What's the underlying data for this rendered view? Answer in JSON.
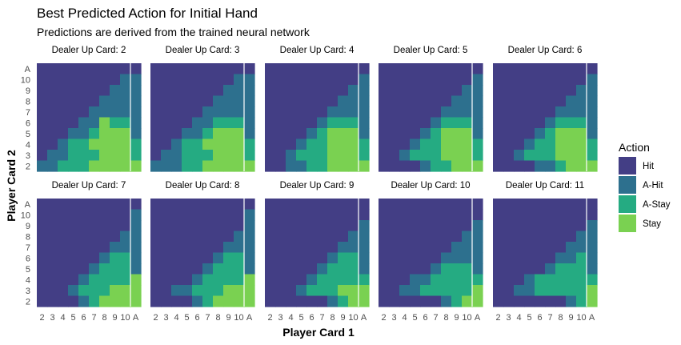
{
  "chart_data": {
    "type": "heatmap",
    "title": "Best Predicted Action for Initial Hand",
    "subtitle": "Predictions are derived from the trained neural network",
    "xlabel": "Player Card 1",
    "ylabel": "Player Card 2",
    "x_categories": [
      "2",
      "3",
      "4",
      "5",
      "6",
      "7",
      "8",
      "9",
      "10",
      "A"
    ],
    "y_categories": [
      "2",
      "3",
      "4",
      "5",
      "6",
      "7",
      "8",
      "9",
      "10",
      "A"
    ],
    "legend": {
      "title": "Action",
      "position": "right",
      "entries": [
        {
          "label": "Hit",
          "color": "#433e85"
        },
        {
          "label": "A-Hit",
          "color": "#2d708e"
        },
        {
          "label": "A-Stay",
          "color": "#25ab82"
        },
        {
          "label": "Stay",
          "color": "#7ad151"
        }
      ]
    },
    "panels": [
      {
        "label": "Dealer Up Card: 2",
        "grid": [
          "0000000000",
          "0000000011",
          "0000000111",
          "0000001111",
          "0000011111",
          "0000113221",
          "0001123331",
          "0012233332",
          "0112223332",
          "1122233333"
        ]
      },
      {
        "label": "Dealer Up Card: 3",
        "grid": [
          "0000000000",
          "0000000011",
          "0000000111",
          "0000001111",
          "0000011111",
          "0000112221",
          "0001123331",
          "0012233332",
          "0112223332",
          "1112233333"
        ]
      },
      {
        "label": "Dealer Up Card: 4",
        "grid": [
          "0000000000",
          "0000000001",
          "0000000011",
          "0000000111",
          "0000001111",
          "0000012221",
          "0000123331",
          "0001223332",
          "0012223332",
          "0011223333"
        ]
      },
      {
        "label": "Dealer Up Card: 5",
        "grid": [
          "0000000000",
          "0000000001",
          "0000000011",
          "0000000111",
          "0000001111",
          "0000012221",
          "0000123331",
          "0001223332",
          "0012223332",
          "0000122333"
        ]
      },
      {
        "label": "Dealer Up Card: 6",
        "grid": [
          "0000000000",
          "0000000001",
          "0000000011",
          "0000000111",
          "0000001111",
          "0000012221",
          "0000123331",
          "0001223332",
          "0012223332",
          "0000112333"
        ]
      },
      {
        "label": "Dealer Up Card: 7",
        "grid": [
          "0000000000",
          "0000000001",
          "0000000001",
          "0000000011",
          "0000000111",
          "0000001221",
          "0000012221",
          "0000122223",
          "0001222333",
          "0000123333"
        ]
      },
      {
        "label": "Dealer Up Card: 8",
        "grid": [
          "0000000000",
          "0000000001",
          "0000000001",
          "0000000011",
          "0000000111",
          "0000001221",
          "0000012221",
          "0000122223",
          "0011222333",
          "0000123333"
        ]
      },
      {
        "label": "Dealer Up Card: 9",
        "grid": [
          "0000000000",
          "0000000000",
          "0000000001",
          "0000000011",
          "0000000111",
          "0000001221",
          "0000012221",
          "0000122222",
          "0001222333",
          "0000001233"
        ]
      },
      {
        "label": "Dealer Up Card: 10",
        "grid": [
          "0000000000",
          "0000000000",
          "0000000001",
          "0000000011",
          "0000000111",
          "0000001111",
          "0000012221",
          "0001122222",
          "0011222223",
          "0000001233"
        ]
      },
      {
        "label": "Dealer Up Card: 11",
        "grid": [
          "0000000000",
          "0000000000",
          "0000000001",
          "0000000011",
          "0000000111",
          "0000001121",
          "0000012221",
          "0001222222",
          "0011222223",
          "0000000123"
        ]
      }
    ]
  }
}
